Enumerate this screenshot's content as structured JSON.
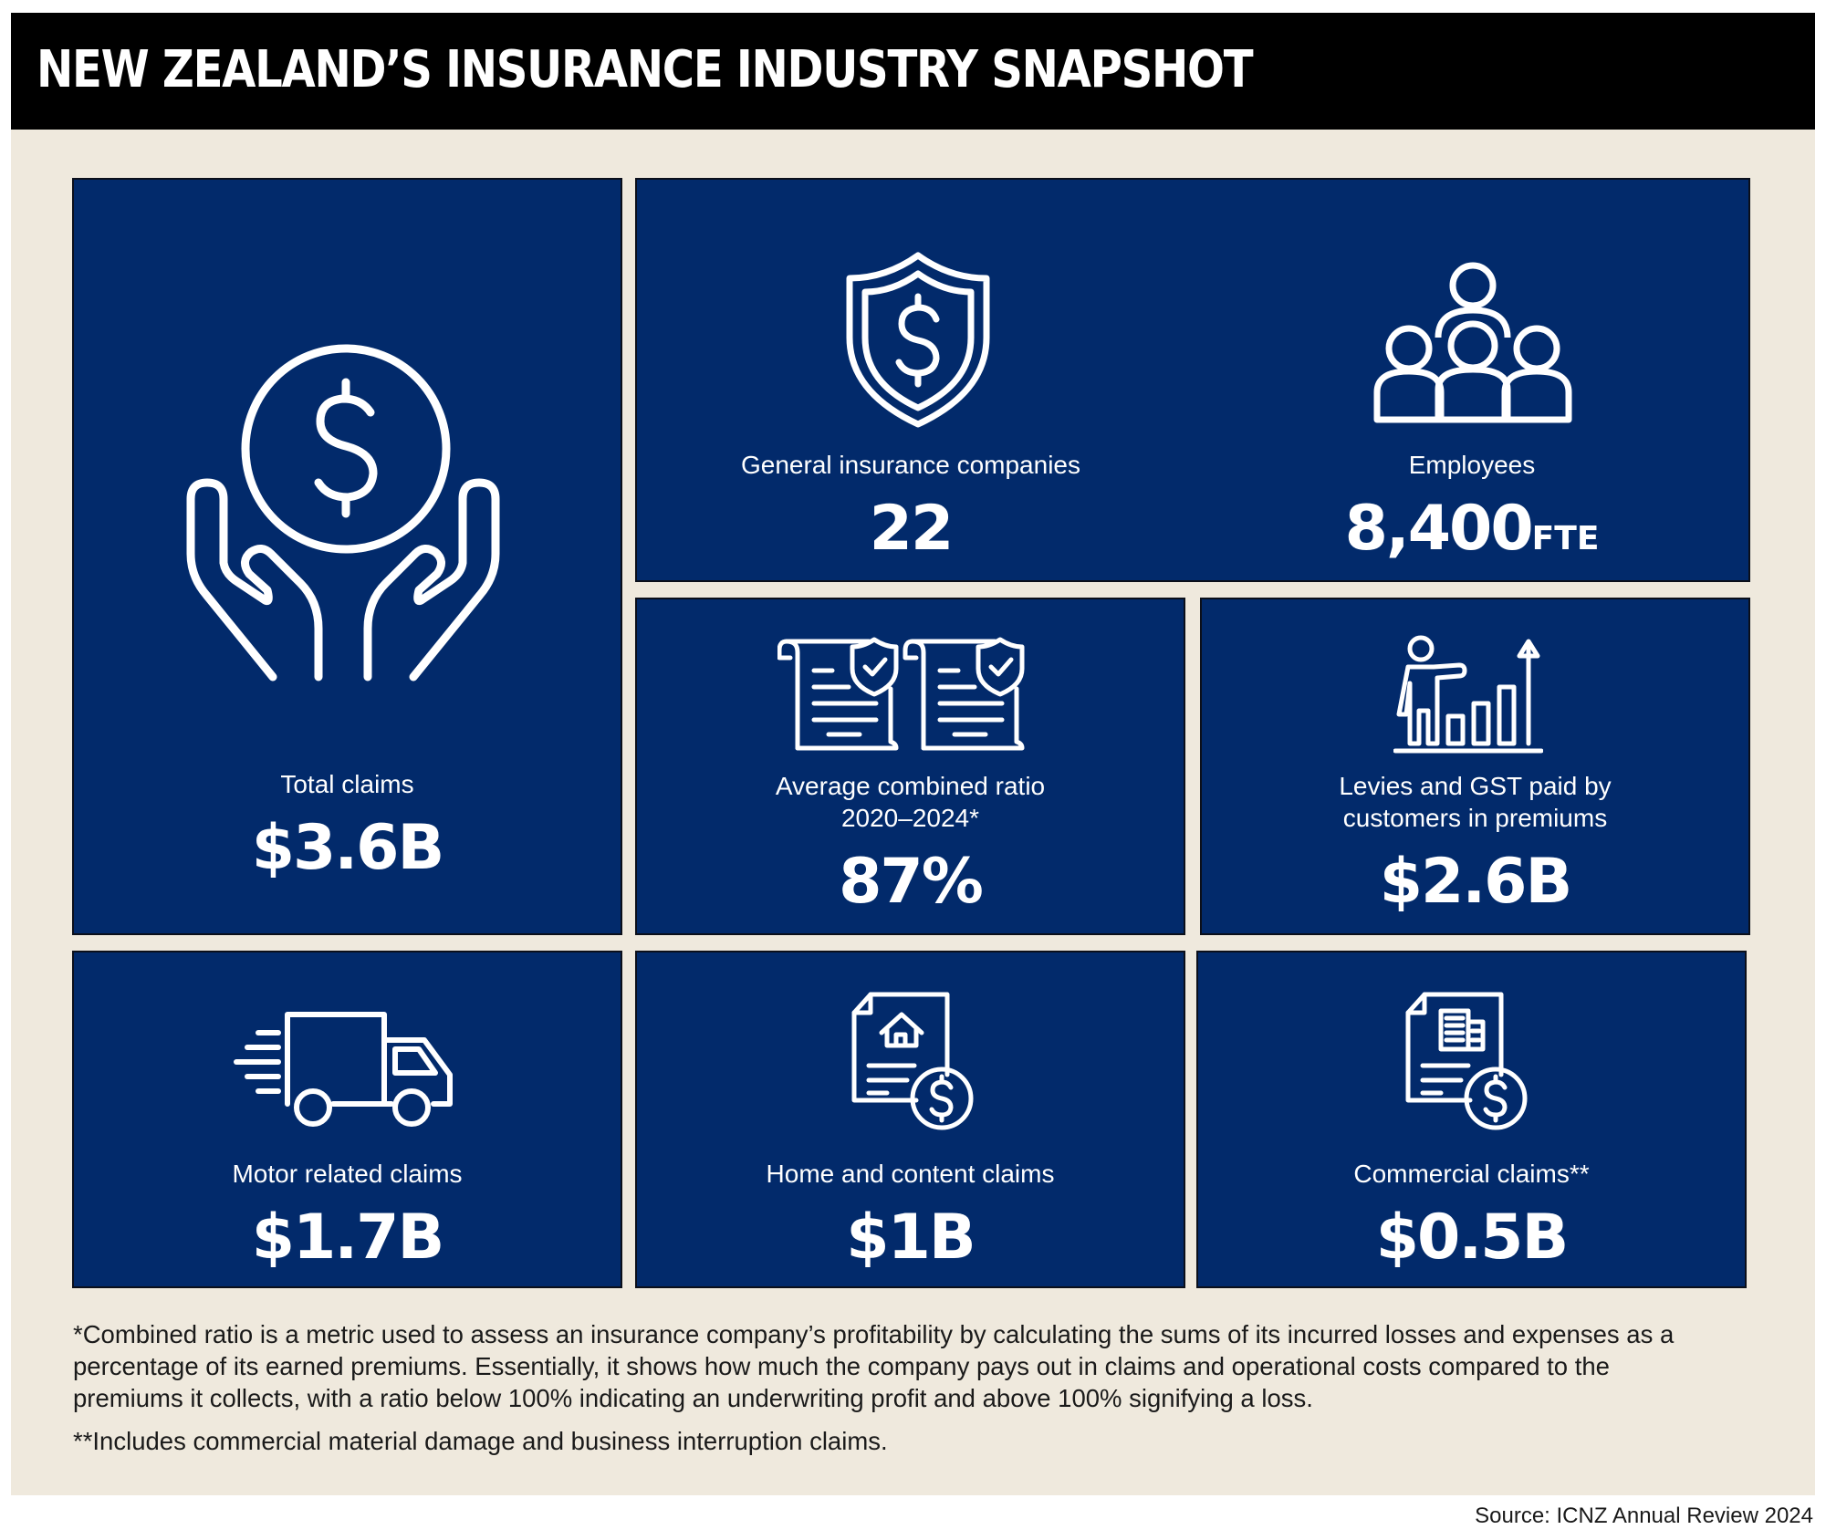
{
  "header": {
    "title": "NEW ZEALAND’S INSURANCE INDUSTRY SNAPSHOT"
  },
  "stats": {
    "total_claims": {
      "label": "Total claims",
      "value": "$3.6B",
      "icon": "hands-coin-icon"
    },
    "companies": {
      "label": "General insurance companies",
      "value": "22",
      "icon": "shield-dollar-icon"
    },
    "employees": {
      "label": "Employees",
      "value": "8,400",
      "unit": "FTE",
      "icon": "people-group-icon"
    },
    "combined_ratio": {
      "label_line1": "Average combined ratio",
      "label_line2": "2020–2024*",
      "value": "87%",
      "icon": "policy-documents-icon"
    },
    "levies": {
      "label_line1": "Levies and GST paid by",
      "label_line2": "customers in premiums",
      "value": "$2.6B",
      "icon": "presenter-growth-chart-icon"
    },
    "motor": {
      "label": "Motor related claims",
      "value": "$1.7B",
      "icon": "delivery-truck-icon"
    },
    "home": {
      "label": "Home and content claims",
      "value": "$1B",
      "icon": "house-document-dollar-icon"
    },
    "commercial": {
      "label": "Commercial claims**",
      "value": "$0.5B",
      "icon": "building-document-dollar-icon"
    }
  },
  "footnotes": {
    "combined_ratio_line1": "*Combined ratio is a metric used to assess an insurance company’s profitability by calculating the sums of its incurred losses and expenses as a",
    "combined_ratio_line2": "percentage of its earned premiums. Essentially, it shows how much the company pays out in claims and operational costs compared to the",
    "combined_ratio_line3": "premiums it collects, with a ratio below 100% indicating an underwriting profit and above 100% signifying a loss.",
    "commercial": "**Includes commercial material damage and business interruption claims."
  },
  "source": "Source: ICNZ Annual Review 2024",
  "colors": {
    "card": "#022a6b",
    "background": "#efe9dd",
    "header": "#000000",
    "text": "#ffffff"
  }
}
